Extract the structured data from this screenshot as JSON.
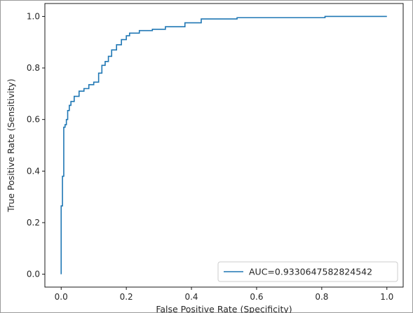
{
  "chart_data": {
    "type": "line",
    "title": "",
    "xlabel": "False Positive Rate (Specificity)",
    "ylabel": "True Positive Rate  (Sensitivity)",
    "xlim": [
      -0.05,
      1.05
    ],
    "ylim": [
      -0.05,
      1.05
    ],
    "x_ticks": [
      "0.0",
      "0.2",
      "0.4",
      "0.6",
      "0.8",
      "1.0"
    ],
    "y_ticks": [
      "0.0",
      "0.2",
      "0.4",
      "0.6",
      "0.8",
      "1.0"
    ],
    "grid": false,
    "legend_position": "lower-right",
    "color": "#1f77b4",
    "series": [
      {
        "name": "AUC=0.9330647582824542",
        "x": [
          0.0,
          0.0,
          0.004,
          0.004,
          0.008,
          0.008,
          0.012,
          0.012,
          0.016,
          0.016,
          0.02,
          0.02,
          0.025,
          0.025,
          0.03,
          0.03,
          0.04,
          0.04,
          0.055,
          0.055,
          0.07,
          0.07,
          0.085,
          0.085,
          0.1,
          0.1,
          0.115,
          0.115,
          0.125,
          0.125,
          0.135,
          0.135,
          0.145,
          0.145,
          0.155,
          0.155,
          0.17,
          0.17,
          0.185,
          0.185,
          0.2,
          0.2,
          0.21,
          0.21,
          0.24,
          0.24,
          0.28,
          0.28,
          0.32,
          0.32,
          0.38,
          0.38,
          0.43,
          0.43,
          0.54,
          0.54,
          0.81,
          0.81,
          1.0
        ],
        "y": [
          0.0,
          0.265,
          0.265,
          0.38,
          0.38,
          0.57,
          0.57,
          0.58,
          0.58,
          0.6,
          0.6,
          0.635,
          0.635,
          0.655,
          0.655,
          0.67,
          0.67,
          0.69,
          0.69,
          0.71,
          0.71,
          0.72,
          0.72,
          0.735,
          0.735,
          0.745,
          0.745,
          0.78,
          0.78,
          0.81,
          0.81,
          0.825,
          0.825,
          0.845,
          0.845,
          0.87,
          0.87,
          0.89,
          0.89,
          0.91,
          0.91,
          0.925,
          0.925,
          0.935,
          0.935,
          0.945,
          0.945,
          0.95,
          0.95,
          0.96,
          0.96,
          0.975,
          0.975,
          0.99,
          0.99,
          0.995,
          0.995,
          1.0,
          1.0
        ]
      }
    ]
  }
}
